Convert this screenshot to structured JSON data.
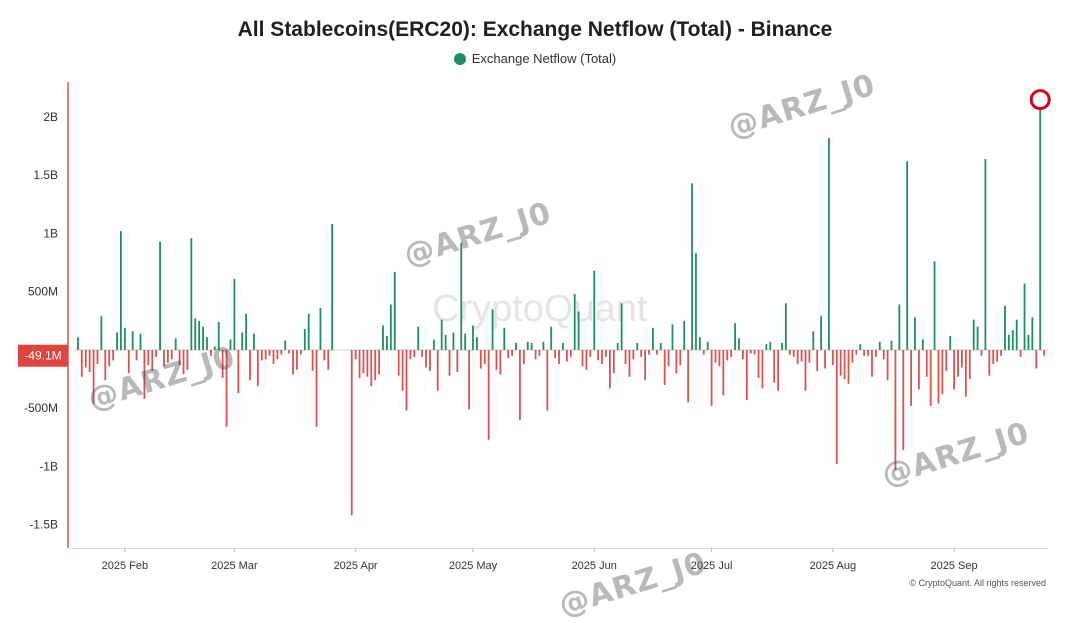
{
  "chart_data": {
    "type": "bar",
    "title": "All Stablecoins(ERC20): Exchange Netflow (Total) - Binance",
    "legend": [
      {
        "name": "Exchange Netflow (Total)",
        "color": "#1e8f5e"
      }
    ],
    "legend_position": "top-center",
    "ylim": [
      -1700,
      2300
    ],
    "y_ticks": [
      {
        "value": 2000,
        "label": "2B"
      },
      {
        "value": 1500,
        "label": "1.5B"
      },
      {
        "value": 1000,
        "label": "1B"
      },
      {
        "value": 500,
        "label": "500M"
      },
      {
        "value": -500,
        "label": "-500M"
      },
      {
        "value": -1000,
        "label": "-1B"
      },
      {
        "value": -1500,
        "label": "-1.5B"
      }
    ],
    "current_value_label": "-49.1M",
    "current_value": -49.1,
    "x_range": [
      "2025-01-19",
      "2025-09-25"
    ],
    "x_ticks": [
      {
        "date": "2025-02-01",
        "label": "2025 Feb"
      },
      {
        "date": "2025-03-01",
        "label": "2025 Mar"
      },
      {
        "date": "2025-04-01",
        "label": "2025 Apr"
      },
      {
        "date": "2025-05-01",
        "label": "2025 May"
      },
      {
        "date": "2025-06-01",
        "label": "2025 Jun"
      },
      {
        "date": "2025-07-01",
        "label": "2025 Jul"
      },
      {
        "date": "2025-08-01",
        "label": "2025 Aug"
      },
      {
        "date": "2025-09-01",
        "label": "2025 Sep"
      }
    ],
    "grid": false,
    "positive_color": "#1e8f5e",
    "negative_color": "#d9534f",
    "highlight_color": "#d0021b",
    "highlight_date": "2025-09-23",
    "y_unit": "millions USD",
    "series": [
      {
        "name": "Exchange Netflow (Total)",
        "points": [
          [
            "2025-01-20",
            110
          ],
          [
            "2025-01-21",
            -230
          ],
          [
            "2025-01-22",
            -150
          ],
          [
            "2025-01-23",
            -190
          ],
          [
            "2025-01-24",
            -460
          ],
          [
            "2025-01-25",
            -120
          ],
          [
            "2025-01-26",
            290
          ],
          [
            "2025-01-27",
            -260
          ],
          [
            "2025-01-28",
            -140
          ],
          [
            "2025-01-29",
            -90
          ],
          [
            "2025-01-30",
            150
          ],
          [
            "2025-01-31",
            1020
          ],
          [
            "2025-02-01",
            190
          ],
          [
            "2025-02-02",
            -200
          ],
          [
            "2025-02-03",
            160
          ],
          [
            "2025-02-04",
            -90
          ],
          [
            "2025-02-05",
            140
          ],
          [
            "2025-02-06",
            -420
          ],
          [
            "2025-02-07",
            -130
          ],
          [
            "2025-02-08",
            -180
          ],
          [
            "2025-02-09",
            -60
          ],
          [
            "2025-02-10",
            930
          ],
          [
            "2025-02-11",
            -140
          ],
          [
            "2025-02-12",
            -110
          ],
          [
            "2025-02-13",
            -80
          ],
          [
            "2025-02-14",
            100
          ],
          [
            "2025-02-15",
            -130
          ],
          [
            "2025-02-16",
            -210
          ],
          [
            "2025-02-17",
            -170
          ],
          [
            "2025-02-18",
            960
          ],
          [
            "2025-02-19",
            270
          ],
          [
            "2025-02-20",
            250
          ],
          [
            "2025-02-21",
            200
          ],
          [
            "2025-02-22",
            110
          ],
          [
            "2025-02-23",
            -50
          ],
          [
            "2025-02-24",
            30
          ],
          [
            "2025-02-25",
            240
          ],
          [
            "2025-02-26",
            -240
          ],
          [
            "2025-02-27",
            -660
          ],
          [
            "2025-02-28",
            90
          ],
          [
            "2025-03-01",
            610
          ],
          [
            "2025-03-02",
            -370
          ],
          [
            "2025-03-03",
            150
          ],
          [
            "2025-03-04",
            310
          ],
          [
            "2025-03-05",
            -260
          ],
          [
            "2025-03-06",
            140
          ],
          [
            "2025-03-07",
            -310
          ],
          [
            "2025-03-08",
            -90
          ],
          [
            "2025-03-09",
            -80
          ],
          [
            "2025-03-10",
            -50
          ],
          [
            "2025-03-11",
            -120
          ],
          [
            "2025-03-12",
            -80
          ],
          [
            "2025-03-13",
            -40
          ],
          [
            "2025-03-14",
            80
          ],
          [
            "2025-03-15",
            -30
          ],
          [
            "2025-03-16",
            -210
          ],
          [
            "2025-03-17",
            -170
          ],
          [
            "2025-03-18",
            -40
          ],
          [
            "2025-03-19",
            180
          ],
          [
            "2025-03-20",
            310
          ],
          [
            "2025-03-21",
            -180
          ],
          [
            "2025-03-22",
            -660
          ],
          [
            "2025-03-23",
            360
          ],
          [
            "2025-03-24",
            -90
          ],
          [
            "2025-03-25",
            -170
          ],
          [
            "2025-03-26",
            1080
          ],
          [
            "2025-03-31",
            -1420
          ],
          [
            "2025-04-01",
            -80
          ],
          [
            "2025-04-02",
            -240
          ],
          [
            "2025-04-03",
            -200
          ],
          [
            "2025-04-04",
            -230
          ],
          [
            "2025-04-05",
            -310
          ],
          [
            "2025-04-06",
            -260
          ],
          [
            "2025-04-07",
            -210
          ],
          [
            "2025-04-08",
            210
          ],
          [
            "2025-04-09",
            120
          ],
          [
            "2025-04-10",
            390
          ],
          [
            "2025-04-11",
            670
          ],
          [
            "2025-04-12",
            -220
          ],
          [
            "2025-04-13",
            -350
          ],
          [
            "2025-04-14",
            -520
          ],
          [
            "2025-04-15",
            -80
          ],
          [
            "2025-04-16",
            -60
          ],
          [
            "2025-04-17",
            200
          ],
          [
            "2025-04-18",
            -60
          ],
          [
            "2025-04-19",
            -150
          ],
          [
            "2025-04-20",
            -180
          ],
          [
            "2025-04-21",
            90
          ],
          [
            "2025-04-22",
            -350
          ],
          [
            "2025-04-23",
            260
          ],
          [
            "2025-04-24",
            130
          ],
          [
            "2025-04-25",
            -220
          ],
          [
            "2025-04-26",
            150
          ],
          [
            "2025-04-27",
            -190
          ],
          [
            "2025-04-28",
            920
          ],
          [
            "2025-04-29",
            140
          ],
          [
            "2025-04-30",
            -510
          ],
          [
            "2025-05-01",
            210
          ],
          [
            "2025-05-02",
            110
          ],
          [
            "2025-05-03",
            -160
          ],
          [
            "2025-05-04",
            -120
          ],
          [
            "2025-05-05",
            -770
          ],
          [
            "2025-05-06",
            350
          ],
          [
            "2025-05-07",
            -170
          ],
          [
            "2025-05-08",
            -210
          ],
          [
            "2025-05-09",
            190
          ],
          [
            "2025-05-10",
            -70
          ],
          [
            "2025-05-11",
            -50
          ],
          [
            "2025-05-12",
            60
          ],
          [
            "2025-05-13",
            -600
          ],
          [
            "2025-05-14",
            -120
          ],
          [
            "2025-05-15",
            70
          ],
          [
            "2025-05-16",
            60
          ],
          [
            "2025-05-17",
            -80
          ],
          [
            "2025-05-18",
            -50
          ],
          [
            "2025-05-19",
            70
          ],
          [
            "2025-05-20",
            -520
          ],
          [
            "2025-05-21",
            200
          ],
          [
            "2025-05-22",
            -70
          ],
          [
            "2025-05-23",
            -120
          ],
          [
            "2025-05-24",
            60
          ],
          [
            "2025-05-25",
            -100
          ],
          [
            "2025-05-26",
            -60
          ],
          [
            "2025-05-27",
            480
          ],
          [
            "2025-05-28",
            330
          ],
          [
            "2025-05-29",
            -140
          ],
          [
            "2025-05-30",
            -170
          ],
          [
            "2025-05-31",
            -60
          ],
          [
            "2025-06-01",
            680
          ],
          [
            "2025-06-02",
            -90
          ],
          [
            "2025-06-03",
            -120
          ],
          [
            "2025-06-04",
            -60
          ],
          [
            "2025-06-05",
            -330
          ],
          [
            "2025-06-06",
            -200
          ],
          [
            "2025-06-07",
            60
          ],
          [
            "2025-06-08",
            400
          ],
          [
            "2025-06-09",
            -120
          ],
          [
            "2025-06-10",
            -230
          ],
          [
            "2025-06-11",
            -80
          ],
          [
            "2025-06-12",
            60
          ],
          [
            "2025-06-13",
            -60
          ],
          [
            "2025-06-14",
            -260
          ],
          [
            "2025-06-15",
            -40
          ],
          [
            "2025-06-16",
            190
          ],
          [
            "2025-06-17",
            -40
          ],
          [
            "2025-06-18",
            60
          ],
          [
            "2025-06-19",
            -300
          ],
          [
            "2025-06-20",
            -140
          ],
          [
            "2025-06-21",
            220
          ],
          [
            "2025-06-22",
            -200
          ],
          [
            "2025-06-23",
            -130
          ],
          [
            "2025-06-24",
            250
          ],
          [
            "2025-06-25",
            -450
          ],
          [
            "2025-06-26",
            1430
          ],
          [
            "2025-06-27",
            830
          ],
          [
            "2025-06-28",
            110
          ],
          [
            "2025-06-29",
            -40
          ],
          [
            "2025-06-30",
            70
          ],
          [
            "2025-07-01",
            -480
          ],
          [
            "2025-07-02",
            -110
          ],
          [
            "2025-07-03",
            -140
          ],
          [
            "2025-07-04",
            -390
          ],
          [
            "2025-07-05",
            -90
          ],
          [
            "2025-07-06",
            -60
          ],
          [
            "2025-07-07",
            230
          ],
          [
            "2025-07-08",
            100
          ],
          [
            "2025-07-09",
            -80
          ],
          [
            "2025-07-10",
            -430
          ],
          [
            "2025-07-11",
            -30
          ],
          [
            "2025-07-12",
            -40
          ],
          [
            "2025-07-13",
            -240
          ],
          [
            "2025-07-14",
            -330
          ],
          [
            "2025-07-15",
            50
          ],
          [
            "2025-07-16",
            70
          ],
          [
            "2025-07-17",
            -280
          ],
          [
            "2025-07-18",
            -350
          ],
          [
            "2025-07-19",
            60
          ],
          [
            "2025-07-20",
            400
          ],
          [
            "2025-07-21",
            -40
          ],
          [
            "2025-07-22",
            -60
          ],
          [
            "2025-07-23",
            -120
          ],
          [
            "2025-07-24",
            -100
          ],
          [
            "2025-07-25",
            -350
          ],
          [
            "2025-07-26",
            -110
          ],
          [
            "2025-07-27",
            160
          ],
          [
            "2025-07-28",
            -180
          ],
          [
            "2025-07-29",
            290
          ],
          [
            "2025-07-30",
            -160
          ],
          [
            "2025-07-31",
            1820
          ],
          [
            "2025-08-01",
            -130
          ],
          [
            "2025-08-02",
            -980
          ],
          [
            "2025-08-03",
            -220
          ],
          [
            "2025-08-04",
            -250
          ],
          [
            "2025-08-05",
            -290
          ],
          [
            "2025-08-06",
            -110
          ],
          [
            "2025-08-07",
            -40
          ],
          [
            "2025-08-08",
            50
          ],
          [
            "2025-08-09",
            -50
          ],
          [
            "2025-08-10",
            -50
          ],
          [
            "2025-08-11",
            -230
          ],
          [
            "2025-08-12",
            -60
          ],
          [
            "2025-08-13",
            70
          ],
          [
            "2025-08-14",
            -80
          ],
          [
            "2025-08-15",
            -260
          ],
          [
            "2025-08-16",
            80
          ],
          [
            "2025-08-17",
            -1030
          ],
          [
            "2025-08-18",
            390
          ],
          [
            "2025-08-19",
            -860
          ],
          [
            "2025-08-20",
            1620
          ],
          [
            "2025-08-21",
            -480
          ],
          [
            "2025-08-22",
            280
          ],
          [
            "2025-08-23",
            -340
          ],
          [
            "2025-08-24",
            90
          ],
          [
            "2025-08-25",
            -230
          ],
          [
            "2025-08-26",
            -480
          ],
          [
            "2025-08-27",
            760
          ],
          [
            "2025-08-28",
            -460
          ],
          [
            "2025-08-29",
            -380
          ],
          [
            "2025-08-30",
            -180
          ],
          [
            "2025-08-31",
            120
          ],
          [
            "2025-09-01",
            -340
          ],
          [
            "2025-09-02",
            -230
          ],
          [
            "2025-09-03",
            -150
          ],
          [
            "2025-09-04",
            -400
          ],
          [
            "2025-09-05",
            -250
          ],
          [
            "2025-09-06",
            260
          ],
          [
            "2025-09-07",
            200
          ],
          [
            "2025-09-08",
            -50
          ],
          [
            "2025-09-09",
            1640
          ],
          [
            "2025-09-10",
            -220
          ],
          [
            "2025-09-11",
            -120
          ],
          [
            "2025-09-12",
            -100
          ],
          [
            "2025-09-13",
            -50
          ],
          [
            "2025-09-14",
            380
          ],
          [
            "2025-09-15",
            130
          ],
          [
            "2025-09-16",
            170
          ],
          [
            "2025-09-17",
            260
          ],
          [
            "2025-09-18",
            -60
          ],
          [
            "2025-09-19",
            570
          ],
          [
            "2025-09-20",
            130
          ],
          [
            "2025-09-21",
            280
          ],
          [
            "2025-09-22",
            -160
          ],
          [
            "2025-09-23",
            2080
          ],
          [
            "2025-09-24",
            -49.1
          ]
        ]
      }
    ]
  },
  "footer": "© CryptoQuant. All rights reserved",
  "brand_watermark": "CryptoQuant",
  "handle_watermark": "@ARZ_J0"
}
